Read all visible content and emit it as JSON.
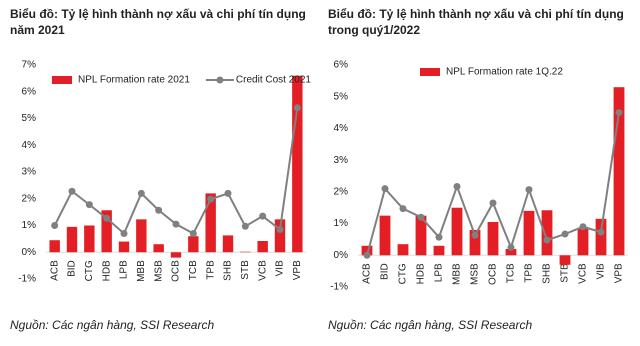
{
  "chart_data": [
    {
      "type": "bar-line",
      "title": "Biểu đồ: Tỷ lệ hình thành nợ xấu và chi phí tín dụng năm 2021",
      "categories": [
        "ACB",
        "BID",
        "CTG",
        "HDB",
        "LPB",
        "MBB",
        "MSB",
        "OCB",
        "TCB",
        "TPB",
        "SHB",
        "STB",
        "VCB",
        "VIB",
        "VPB"
      ],
      "series": [
        {
          "name": "NPL Formation rate 2021",
          "type": "bar",
          "color": "#e31e24",
          "values": [
            0.45,
            0.95,
            1.0,
            1.57,
            0.4,
            1.23,
            0.3,
            -0.2,
            0.6,
            2.2,
            0.63,
            0.02,
            0.42,
            1.23,
            6.6
          ]
        },
        {
          "name": "Credit Cost 2021",
          "type": "line",
          "color": "#808080",
          "values": [
            1.0,
            2.28,
            1.78,
            1.27,
            0.7,
            2.2,
            1.57,
            1.05,
            0.7,
            1.98,
            2.2,
            0.97,
            1.35,
            0.85,
            5.4
          ]
        }
      ],
      "ylim": [
        -1,
        7
      ],
      "yticks": [
        {
          "value": -1,
          "label": "-1%"
        },
        {
          "value": 0,
          "label": "0%"
        },
        {
          "value": 1,
          "label": "1%"
        },
        {
          "value": 2,
          "label": "2%"
        },
        {
          "value": 3,
          "label": "3%"
        },
        {
          "value": 4,
          "label": "4%"
        },
        {
          "value": 5,
          "label": "5%"
        },
        {
          "value": 6,
          "label": "6%"
        },
        {
          "value": 7,
          "label": "7%"
        }
      ],
      "legend": "top",
      "source": "Nguồn: Các ngân hàng, SSI Research"
    },
    {
      "type": "bar-line",
      "title": "Biểu đồ: Tỷ lệ hình thành nợ xấu và chi phí tín dụng trong quý1/2022",
      "categories": [
        "ACB",
        "BID",
        "CTG",
        "HDB",
        "LPB",
        "MBB",
        "MSB",
        "OCB",
        "TCB",
        "TPB",
        "SHB",
        "STB",
        "VCB",
        "VIB",
        "VPB"
      ],
      "series": [
        {
          "name": "NPL Formation rate 1Q.22",
          "type": "bar",
          "color": "#e31e24",
          "values": [
            0.3,
            1.25,
            0.35,
            1.25,
            0.3,
            1.5,
            0.8,
            1.05,
            0.2,
            1.4,
            1.42,
            -0.3,
            0.85,
            1.15,
            5.3
          ]
        },
        {
          "type": "line",
          "color": "#808080",
          "values": [
            0.0,
            2.1,
            1.47,
            1.2,
            0.57,
            2.17,
            0.63,
            1.65,
            0.25,
            2.07,
            0.48,
            0.67,
            0.9,
            0.73,
            4.5
          ]
        }
      ],
      "ylim": [
        -1,
        6
      ],
      "yticks": [
        {
          "value": -1,
          "label": "-1%"
        },
        {
          "value": 0,
          "label": "0%"
        },
        {
          "value": 1,
          "label": "1%"
        },
        {
          "value": 2,
          "label": "2%"
        },
        {
          "value": 3,
          "label": "3%"
        },
        {
          "value": 4,
          "label": "4%"
        },
        {
          "value": 5,
          "label": "5%"
        },
        {
          "value": 6,
          "label": "6%"
        }
      ],
      "legend": "top",
      "source": "Nguồn: Các ngân hàng, SSI Research"
    }
  ]
}
